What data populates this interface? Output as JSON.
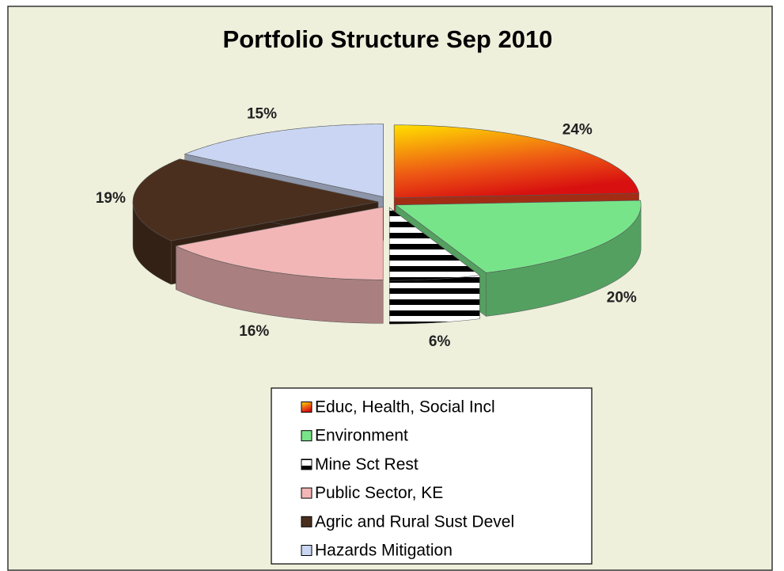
{
  "chart_data": {
    "type": "pie",
    "title": "Portfolio Structure Sep 2010",
    "categories": [
      "Educ, Health, Social Incl",
      "Environment",
      "Mine Sct Rest",
      "Public Sector, KE",
      "Agric and Rural  Sust Devel",
      "Hazards Mitigation"
    ],
    "values": [
      24,
      20,
      6,
      16,
      19,
      15
    ],
    "value_labels": [
      "24%",
      "20%",
      "6%",
      "16%",
      "19%",
      "15%"
    ],
    "colors": [
      "#e8401c",
      "#78e48a",
      "#000000",
      "#f2b6b6",
      "#4a2f1e",
      "#c9d5f2"
    ],
    "patterns": [
      null,
      null,
      "horizontal-stripes",
      null,
      null,
      null
    ],
    "legend": "bottom"
  }
}
